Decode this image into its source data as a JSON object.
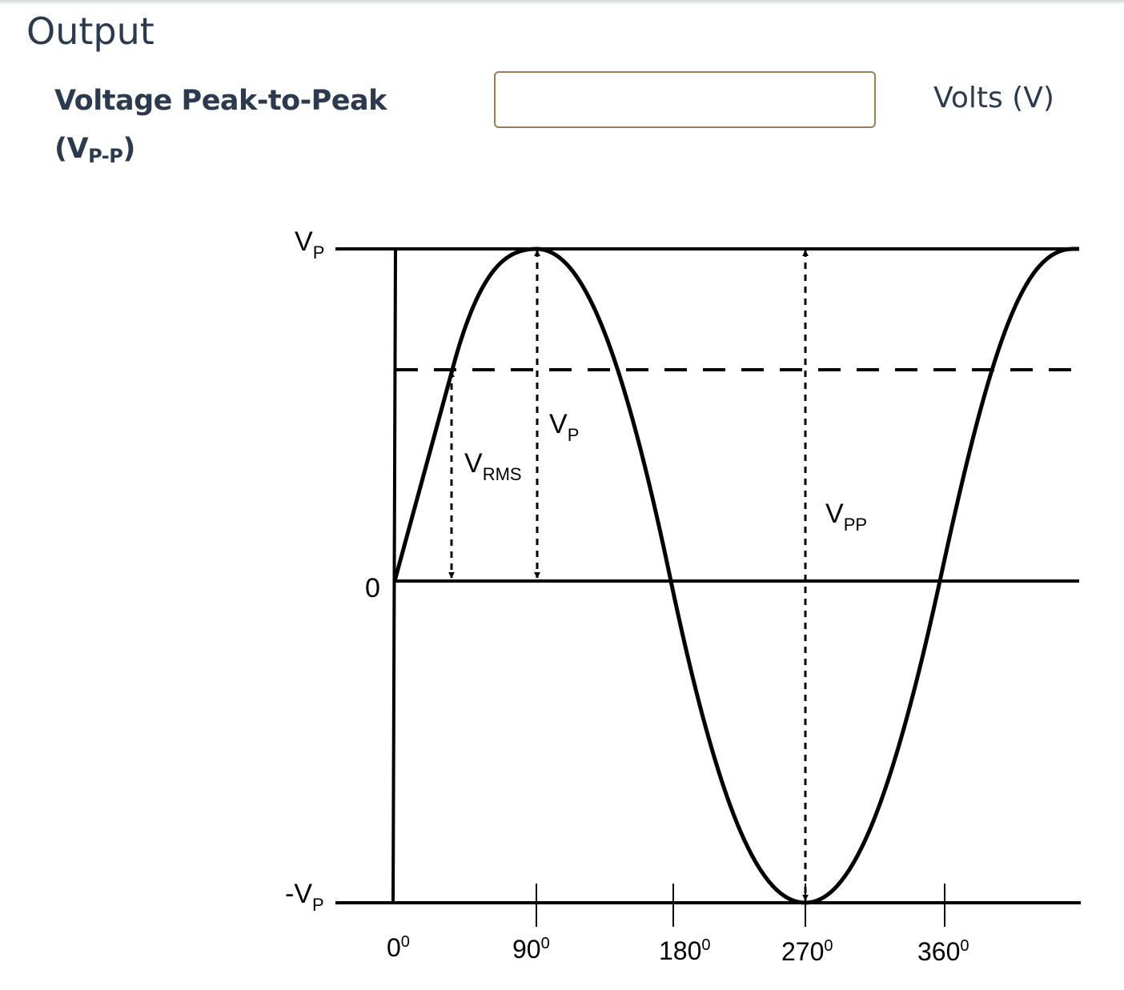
{
  "section": {
    "title": "Output"
  },
  "field": {
    "label": "Voltage Peak-to-Peak",
    "symbol_main": "(V",
    "symbol_sub": "P-P",
    "symbol_close": ")",
    "value": "",
    "unit": "Volts (V)"
  },
  "diagram": {
    "y_labels": {
      "vp": {
        "main": "V",
        "sub": "P"
      },
      "zero": "0",
      "neg_vp": {
        "main": "-V",
        "sub": "P"
      }
    },
    "x_ticks": [
      {
        "main": "0",
        "sup": "0"
      },
      {
        "main": "90",
        "sup": "0"
      },
      {
        "main": "180",
        "sup": "0"
      },
      {
        "main": "270",
        "sup": "0"
      },
      {
        "main": "360",
        "sup": "0"
      }
    ],
    "annotations": {
      "vrms": {
        "main": "V",
        "sub": "RMS"
      },
      "vp": {
        "main": "V",
        "sub": "P"
      },
      "vpp": {
        "main": "V",
        "sub": "PP"
      }
    }
  }
}
